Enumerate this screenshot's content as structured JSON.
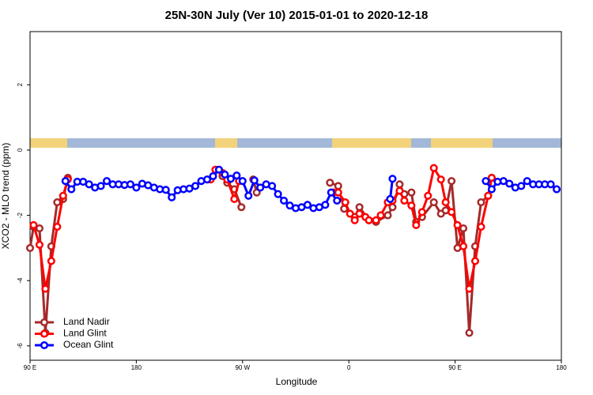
{
  "chart_data": {
    "type": "line",
    "title": "25N-30N July (Ver 10)   2015-01-01 to 2020-12-18",
    "x_label": "Longitude",
    "y_label": "XCO2 - MLO trend (ppm)",
    "xlim": [
      90,
      540
    ],
    "ylim": [
      -6.44,
      3.63
    ],
    "xticks": [
      {
        "value": 90,
        "label": "90 E"
      },
      {
        "value": 180,
        "label": "180"
      },
      {
        "value": 270,
        "label": "90 W"
      },
      {
        "value": 360,
        "label": "0"
      },
      {
        "value": 450,
        "label": "90 E"
      },
      {
        "value": 540,
        "label": "180"
      }
    ],
    "yticks": [
      -6,
      -4,
      -2,
      0,
      2
    ],
    "legend": "bottom-left",
    "series": [
      {
        "name": "Land Nadir",
        "color": "#a52a2a",
        "x": [
          90,
          93,
          98,
          103,
          108,
          113,
          118,
          122,
          200,
          253,
          257,
          263,
          269,
          275,
          279,
          282,
          320,
          344,
          351,
          356,
          365,
          369,
          377,
          383,
          393,
          397,
          403,
          407,
          413,
          417,
          422,
          432,
          438,
          442,
          447,
          452,
          457,
          462,
          467,
          472,
          478,
          481
        ],
        "values": [
          -3.0,
          -2.35,
          -2.4,
          -5.6,
          -2.95,
          -1.6,
          -1.5,
          -0.85,
          null,
          -0.8,
          -1.0,
          -1.2,
          -1.75,
          null,
          -0.9,
          -1.3,
          null,
          -1.0,
          -1.1,
          -1.8,
          -2.05,
          -1.75,
          -2.15,
          -2.2,
          -2.0,
          -1.75,
          -1.05,
          -1.35,
          -1.3,
          -2.2,
          -2.05,
          -1.6,
          -1.95,
          -1.85,
          -0.95,
          -3.0,
          -2.4,
          -5.6,
          -2.95,
          -1.6,
          -1.4,
          -0.85
        ]
      },
      {
        "name": "Land Glint",
        "color": "#ff0000",
        "x": [
          93,
          98,
          103,
          108,
          113,
          118,
          122,
          200,
          243,
          247,
          253,
          257,
          263,
          267,
          320,
          347,
          351,
          357,
          361,
          365,
          369,
          374,
          377,
          383,
          387,
          393,
          397,
          403,
          407,
          413,
          417,
          422,
          427,
          432,
          438,
          442,
          447,
          452,
          457,
          462,
          467,
          472,
          478,
          481
        ],
        "values": [
          -2.3,
          -2.9,
          -4.25,
          -3.4,
          -2.35,
          -1.4,
          -0.9,
          null,
          -0.9,
          -0.6,
          -0.7,
          -0.9,
          -1.5,
          -0.95,
          null,
          -1.3,
          -1.3,
          -1.6,
          -1.95,
          -2.15,
          -1.95,
          -2.05,
          -2.15,
          -2.15,
          -2.0,
          -1.6,
          -1.55,
          -1.25,
          -1.55,
          -1.7,
          -2.3,
          -1.9,
          -1.4,
          -0.55,
          -0.9,
          -1.6,
          -1.9,
          -2.3,
          -2.95,
          -4.25,
          -3.4,
          -2.35,
          -1.4,
          -0.85
        ]
      },
      {
        "name": "Ocean Glint",
        "color": "#0000ff",
        "x": [
          120,
          125,
          130,
          135,
          140,
          145,
          150,
          155,
          160,
          165,
          170,
          175,
          180,
          185,
          190,
          195,
          200,
          205,
          210,
          215,
          220,
          225,
          230,
          235,
          240,
          245,
          250,
          255,
          260,
          265,
          270,
          275,
          280,
          285,
          290,
          295,
          300,
          305,
          310,
          315,
          320,
          325,
          330,
          335,
          340,
          345,
          350,
          370,
          395,
          397,
          430,
          476,
          481,
          486,
          491,
          496,
          501,
          506,
          511,
          516,
          521,
          526,
          531,
          536
        ],
        "values": [
          -0.95,
          -1.2,
          -0.97,
          -0.97,
          -1.05,
          -1.15,
          -1.1,
          -0.95,
          -1.05,
          -1.05,
          -1.07,
          -1.05,
          -1.15,
          -1.03,
          -1.08,
          -1.15,
          -1.2,
          -1.22,
          -1.45,
          -1.23,
          -1.2,
          -1.18,
          -1.1,
          -0.95,
          -0.9,
          -0.8,
          -0.6,
          -0.75,
          -0.88,
          -0.78,
          -0.95,
          -1.4,
          -0.93,
          -1.15,
          -1.05,
          -1.1,
          -1.35,
          -1.55,
          -1.7,
          -1.78,
          -1.75,
          -1.68,
          -1.78,
          -1.75,
          -1.68,
          -1.3,
          -1.55,
          null,
          -1.5,
          -0.88,
          null,
          -0.95,
          -1.2,
          -0.97,
          -0.95,
          -1.03,
          -1.15,
          -1.1,
          -0.95,
          -1.05,
          -1.05,
          -1.05,
          -1.05,
          -1.2
        ]
      }
    ]
  }
}
